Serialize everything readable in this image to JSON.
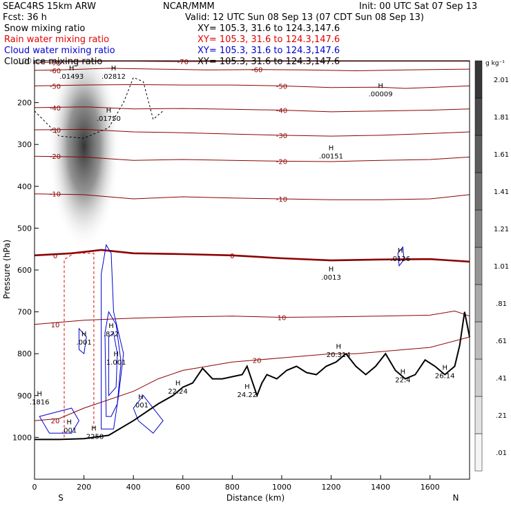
{
  "header": {
    "model": "SEAC4RS 15km ARW",
    "fcst": "Fcst:    36 h",
    "org": "NCAR/MMM",
    "init": "Init: 00 UTC Sat 07 Sep 13",
    "valid": "Valid: 12 UTC Sun 08 Sep 13 (07 CDT Sun 08 Sep 13)",
    "fields": [
      {
        "label": "Snow mixing ratio",
        "xy": "XY=  105.3,  31.6 to 124.3,147.6",
        "color": "#000000"
      },
      {
        "label": "Rain water mixing ratio",
        "xy": "XY=  105.3,  31.6 to 124.3,147.6",
        "color": "#e00000"
      },
      {
        "label": "Cloud water mixing ratio",
        "xy": "XY=  105.3,  31.6 to 124.3,147.6",
        "color": "#0000d0"
      },
      {
        "label": "Cloud ice mixing ratio",
        "xy": "XY=  105.3,  31.6 to 124.3,147.6",
        "color": "#000000"
      }
    ]
  },
  "chart_data": {
    "type": "contour",
    "xlabel": "Distance (km)",
    "ylabel": "Pressure (hPa)",
    "xlim": [
      0,
      1760
    ],
    "ylim": [
      1100,
      100
    ],
    "xticks": [
      0,
      200,
      400,
      600,
      800,
      1000,
      1200,
      1400,
      1600
    ],
    "yticks": [
      200,
      300,
      400,
      500,
      600,
      700,
      800,
      900,
      1000
    ],
    "y_edge_label": "100",
    "end_labels": {
      "left": "S",
      "right": "N"
    },
    "colorbar": {
      "unit": "g kg⁻¹",
      "levels": [
        ".01",
        ".21",
        ".41",
        ".61",
        ".81",
        "1.01",
        "1.21",
        "1.41",
        "1.61",
        "1.81",
        "2.01"
      ]
    },
    "temperature_contours": [
      {
        "level": -70,
        "points": [
          [
            0,
            105
          ],
          [
            100,
            103
          ],
          [
            200,
            102
          ],
          [
            300,
            101
          ],
          [
            400,
            101
          ],
          [
            600,
            102
          ],
          [
            800,
            101
          ],
          [
            1000,
            101
          ],
          [
            1200,
            101
          ],
          [
            1400,
            101
          ],
          [
            1760,
            101
          ]
        ]
      },
      {
        "level": -60,
        "points": [
          [
            0,
            123
          ],
          [
            150,
            121
          ],
          [
            300,
            118
          ],
          [
            500,
            120
          ],
          [
            700,
            122
          ],
          [
            900,
            121
          ],
          [
            1100,
            122
          ],
          [
            1300,
            124
          ],
          [
            1500,
            122
          ],
          [
            1760,
            120
          ]
        ]
      },
      {
        "level": -50,
        "points": [
          [
            0,
            160
          ],
          [
            200,
            158
          ],
          [
            400,
            157
          ],
          [
            600,
            158
          ],
          [
            800,
            158
          ],
          [
            1000,
            160
          ],
          [
            1200,
            164
          ],
          [
            1400,
            163
          ],
          [
            1500,
            166
          ],
          [
            1760,
            160
          ]
        ]
      },
      {
        "level": -40,
        "points": [
          [
            0,
            212
          ],
          [
            200,
            210
          ],
          [
            400,
            215
          ],
          [
            600,
            214
          ],
          [
            800,
            216
          ],
          [
            1000,
            218
          ],
          [
            1200,
            222
          ],
          [
            1400,
            220
          ],
          [
            1600,
            218
          ],
          [
            1760,
            215
          ]
        ]
      },
      {
        "level": -30,
        "points": [
          [
            0,
            265
          ],
          [
            200,
            264
          ],
          [
            400,
            270
          ],
          [
            600,
            272
          ],
          [
            800,
            275
          ],
          [
            1000,
            278
          ],
          [
            1200,
            280
          ],
          [
            1400,
            278
          ],
          [
            1600,
            274
          ],
          [
            1760,
            270
          ]
        ]
      },
      {
        "level": -20,
        "points": [
          [
            0,
            328
          ],
          [
            200,
            330
          ],
          [
            400,
            338
          ],
          [
            600,
            336
          ],
          [
            800,
            338
          ],
          [
            1000,
            340
          ],
          [
            1200,
            341
          ],
          [
            1400,
            338
          ],
          [
            1600,
            336
          ],
          [
            1760,
            330
          ]
        ]
      },
      {
        "level": -10,
        "points": [
          [
            0,
            418
          ],
          [
            200,
            420
          ],
          [
            400,
            430
          ],
          [
            600,
            425
          ],
          [
            800,
            428
          ],
          [
            1000,
            430
          ],
          [
            1200,
            432
          ],
          [
            1400,
            432
          ],
          [
            1600,
            430
          ],
          [
            1760,
            420
          ]
        ]
      },
      {
        "level": 0,
        "points": [
          [
            0,
            565
          ],
          [
            150,
            560
          ],
          [
            270,
            552
          ],
          [
            400,
            560
          ],
          [
            600,
            562
          ],
          [
            800,
            565
          ],
          [
            1000,
            572
          ],
          [
            1200,
            577
          ],
          [
            1400,
            575
          ],
          [
            1600,
            574
          ],
          [
            1760,
            580
          ]
        ]
      },
      {
        "level": 10,
        "points": [
          [
            0,
            730
          ],
          [
            200,
            720
          ],
          [
            400,
            715
          ],
          [
            600,
            712
          ],
          [
            800,
            710
          ],
          [
            1000,
            713
          ],
          [
            1200,
            712
          ],
          [
            1400,
            710
          ],
          [
            1600,
            708
          ],
          [
            1700,
            698
          ],
          [
            1760,
            710
          ]
        ]
      },
      {
        "level": 20,
        "points": [
          [
            0,
            960
          ],
          [
            100,
            955
          ],
          [
            200,
            930
          ],
          [
            400,
            890
          ],
          [
            500,
            860
          ],
          [
            600,
            840
          ],
          [
            700,
            830
          ],
          [
            800,
            820
          ],
          [
            900,
            815
          ],
          [
            1000,
            810
          ],
          [
            1100,
            805
          ],
          [
            1200,
            800
          ],
          [
            1300,
            800
          ],
          [
            1400,
            795
          ],
          [
            1500,
            790
          ],
          [
            1600,
            785
          ],
          [
            1760,
            760
          ]
        ]
      }
    ],
    "terrain": [
      [
        0,
        1005
      ],
      [
        100,
        1005
      ],
      [
        200,
        1003
      ],
      [
        300,
        995
      ],
      [
        400,
        960
      ],
      [
        500,
        920
      ],
      [
        560,
        900
      ],
      [
        600,
        880
      ],
      [
        640,
        870
      ],
      [
        680,
        835
      ],
      [
        720,
        860
      ],
      [
        760,
        860
      ],
      [
        800,
        855
      ],
      [
        840,
        850
      ],
      [
        860,
        830
      ],
      [
        880,
        865
      ],
      [
        900,
        900
      ],
      [
        920,
        870
      ],
      [
        940,
        850
      ],
      [
        980,
        860
      ],
      [
        1020,
        840
      ],
      [
        1060,
        830
      ],
      [
        1100,
        845
      ],
      [
        1140,
        850
      ],
      [
        1180,
        830
      ],
      [
        1220,
        820
      ],
      [
        1260,
        800
      ],
      [
        1300,
        830
      ],
      [
        1340,
        850
      ],
      [
        1380,
        830
      ],
      [
        1420,
        800
      ],
      [
        1460,
        840
      ],
      [
        1500,
        860
      ],
      [
        1540,
        850
      ],
      [
        1580,
        815
      ],
      [
        1620,
        830
      ],
      [
        1660,
        850
      ],
      [
        1700,
        830
      ],
      [
        1720,
        780
      ],
      [
        1740,
        700
      ],
      [
        1760,
        760
      ]
    ],
    "snow_max": {
      "x": 200,
      "p": 370,
      "peak": 2.1
    },
    "extrema_labels": [
      {
        "text": ".01493",
        "x": 150,
        "p": 140
      },
      {
        "text": ".02812",
        "x": 320,
        "p": 140
      },
      {
        "text": ".01750",
        "x": 300,
        "p": 240
      },
      {
        "text": ".00151",
        "x": 1200,
        "p": 330
      },
      {
        "text": ".00009",
        "x": 1400,
        "p": 182
      },
      {
        "text": ".0126",
        "x": 1480,
        "p": 575
      },
      {
        "text": ".0013",
        "x": 1200,
        "p": 620
      },
      {
        "text": ".001",
        "x": 200,
        "p": 775
      },
      {
        "text": ".872",
        "x": 310,
        "p": 755
      },
      {
        "text": "1.001",
        "x": 330,
        "p": 823
      },
      {
        "text": ".1816",
        "x": 20,
        "p": 918
      },
      {
        "text": ".001",
        "x": 140,
        "p": 985
      },
      {
        "text": ".001",
        "x": 430,
        "p": 925
      },
      {
        "text": ".2258",
        "x": 240,
        "p": 1000
      },
      {
        "text": "22.24",
        "x": 580,
        "p": 892
      },
      {
        "text": "24.22",
        "x": 860,
        "p": 900
      },
      {
        "text": "20.314",
        "x": 1230,
        "p": 805
      },
      {
        "text": "22.4",
        "x": 1490,
        "p": 865
      },
      {
        "text": "26.14",
        "x": 1660,
        "p": 855
      }
    ]
  }
}
